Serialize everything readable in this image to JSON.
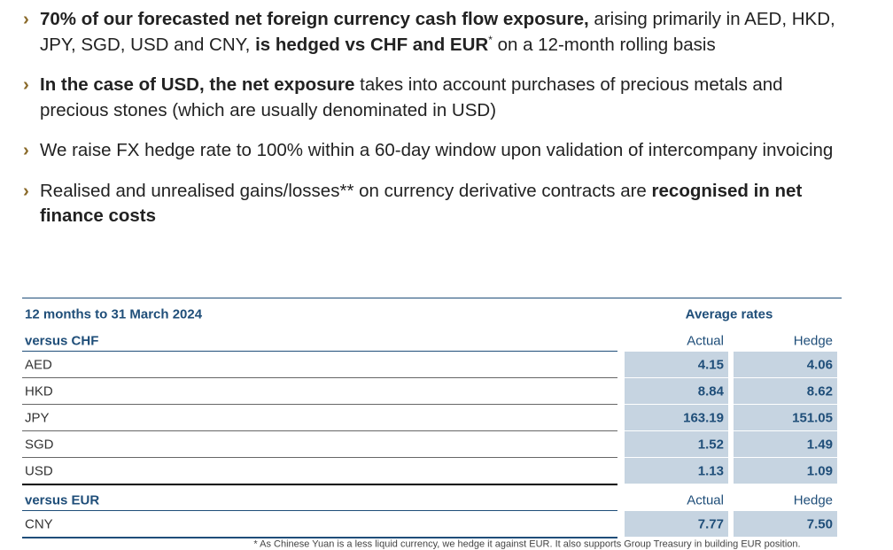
{
  "bullets": [
    {
      "segments": [
        {
          "text": "70% of our forecasted net foreign currency cash flow exposure,",
          "bold": true
        },
        {
          "text": " arising primarily in AED, HKD, JPY, SGD, USD and CNY, "
        },
        {
          "text": "is hedged vs CHF and EUR",
          "bold": true
        },
        {
          "text": "*",
          "sup": true
        },
        {
          "text": " on a 12-month rolling basis"
        }
      ]
    },
    {
      "segments": [
        {
          "text": "In the case of USD, the net exposure",
          "bold": true
        },
        {
          "text": " takes into account purchases of precious metals and precious stones (which are usually denominated in USD)"
        }
      ]
    },
    {
      "segments": [
        {
          "text": "We raise FX hedge rate to 100% within a 60-day window upon validation of intercompany invoicing"
        }
      ]
    },
    {
      "segments": [
        {
          "text": "Realised and unrealised gains/losses** on currency derivative contracts are "
        },
        {
          "text": "recognised in net finance costs",
          "bold": true
        }
      ]
    }
  ],
  "table": {
    "title": "12 months to 31 March 2024",
    "header": "Average rates",
    "sections": [
      {
        "label": "versus CHF",
        "columns": [
          "Actual",
          "Hedge"
        ],
        "rows": [
          [
            "AED",
            "4.15",
            "4.06"
          ],
          [
            "HKD",
            "8.84",
            "8.62"
          ],
          [
            "JPY",
            "163.19",
            "151.05"
          ],
          [
            "SGD",
            "1.52",
            "1.49"
          ],
          [
            "USD",
            "1.13",
            "1.09"
          ]
        ]
      },
      {
        "label": "versus EUR",
        "columns": [
          "Actual",
          "Hedge"
        ],
        "rows": [
          [
            "CNY",
            "7.77",
            "7.50"
          ]
        ]
      }
    ]
  },
  "footnote": "* As Chinese Yuan is a less liquid currency, we hedge it against EUR. It also supports Group Treasury in building EUR position."
}
